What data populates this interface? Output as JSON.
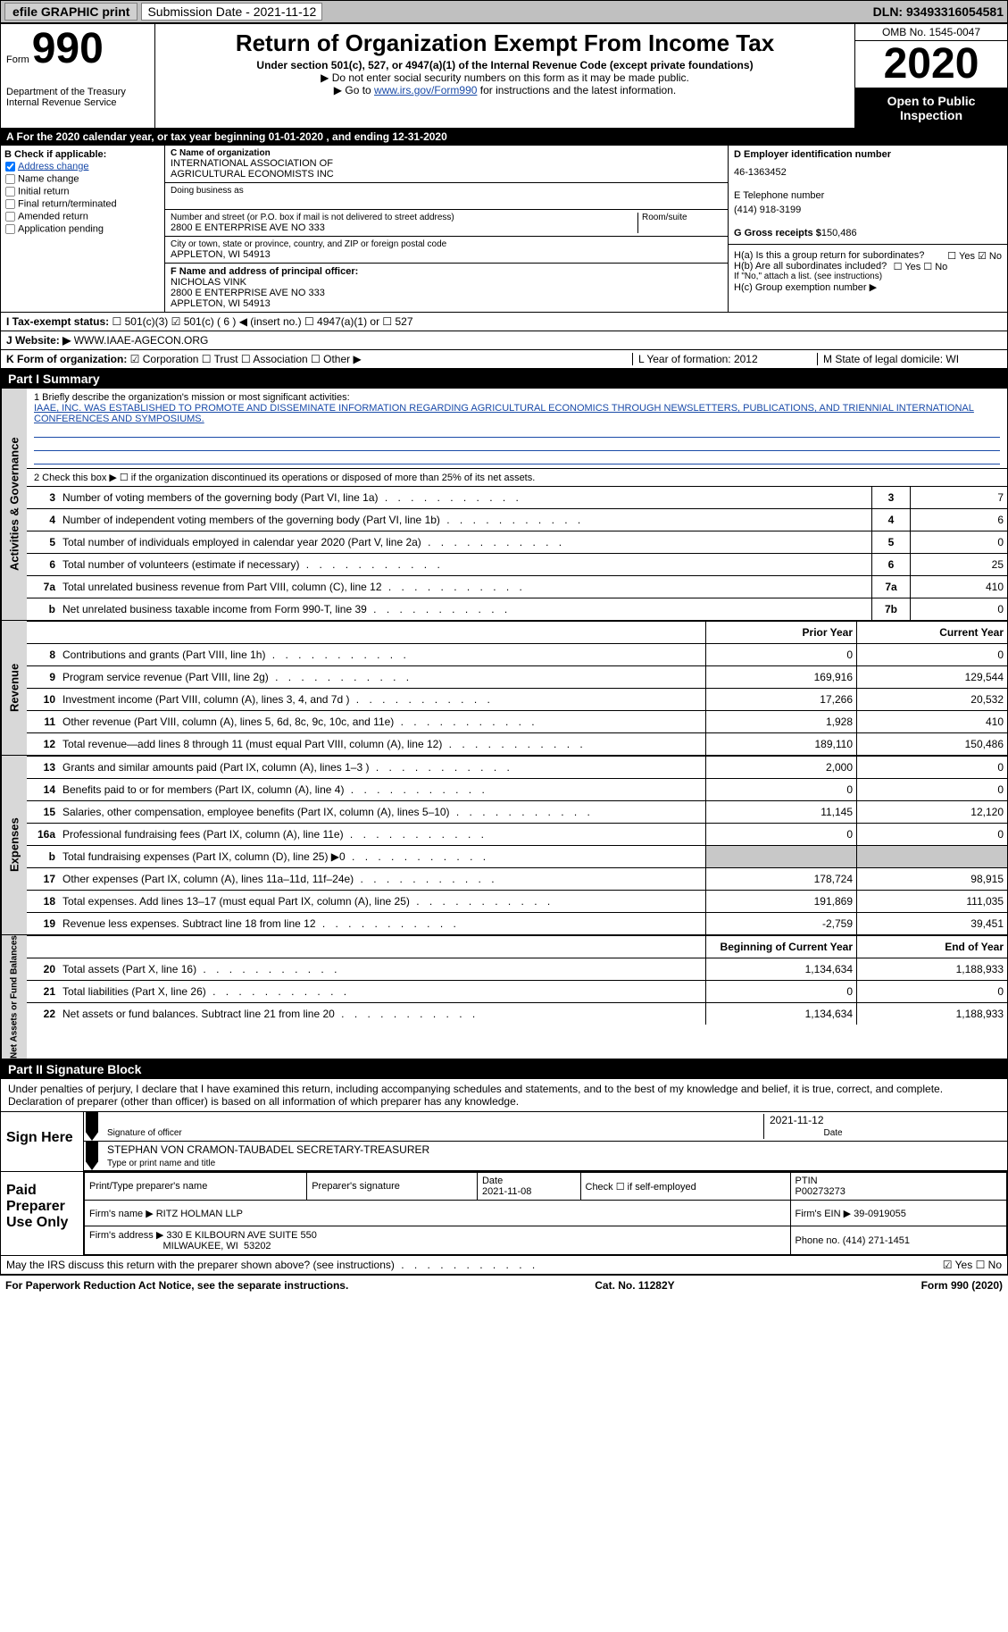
{
  "topbar": {
    "efile": "efile",
    "graphic": "GRAPHIC",
    "print": "print",
    "sub_label": "Submission Date - 2021-11-12",
    "dln_label": "DLN: 93493316054581"
  },
  "header": {
    "form": "Form",
    "num": "990",
    "dept1": "Department of the Treasury",
    "dept2": "Internal Revenue Service",
    "title": "Return of Organization Exempt From Income Tax",
    "sub": "Under section 501(c), 527, or 4947(a)(1) of the Internal Revenue Code (except private foundations)",
    "sub2a": "▶ Do not enter social security numbers on this form as it may be made public.",
    "sub2b_pre": "▶ Go to ",
    "sub2b_link": "www.irs.gov/Form990",
    "sub2b_post": " for instructions and the latest information.",
    "omb": "OMB No. 1545-0047",
    "year": "2020",
    "open": "Open to Public Inspection"
  },
  "period": "A For the 2020 calendar year, or tax year beginning 01-01-2020    , and ending 12-31-2020",
  "B": {
    "hdr": "B Check if applicable:",
    "items": [
      "Address change",
      "Name change",
      "Initial return",
      "Final return/terminated",
      "Amended return",
      "Application pending"
    ],
    "checked_idx": 0
  },
  "C": {
    "name_lbl": "C Name of organization",
    "name1": "INTERNATIONAL ASSOCIATION OF",
    "name2": "AGRICULTURAL ECONOMISTS INC",
    "dba_lbl": "Doing business as",
    "street_lbl": "Number and street (or P.O. box if mail is not delivered to street address)",
    "room_lbl": "Room/suite",
    "street": "2800 E ENTERPRISE AVE NO 333",
    "city_lbl": "City or town, state or province, country, and ZIP or foreign postal code",
    "city": "APPLETON, WI  54913",
    "F_lbl": "F Name and address of principal officer:",
    "F_name": "NICHOLAS VINK",
    "F_addr1": "2800 E ENTERPRISE AVE NO 333",
    "F_addr2": "APPLETON, WI  54913"
  },
  "D": {
    "ein_lbl": "D Employer identification number",
    "ein": "46-1363452",
    "phone_lbl": "E Telephone number",
    "phone": "(414) 918-3199",
    "gross_lbl": "G Gross receipts $",
    "gross": "150,486"
  },
  "H": {
    "a": "H(a)  Is this a group return for subordinates?",
    "b": "H(b)  Are all subordinates included?",
    "yn": "☐ Yes  ☑ No",
    "yn2": "☐ Yes  ☐ No",
    "note": "If \"No,\" attach a list. (see instructions)",
    "c": "H(c)  Group exemption number ▶"
  },
  "I": {
    "lbl": "I   Tax-exempt status:",
    "opts": "☐ 501(c)(3)   ☑ 501(c) ( 6 ) ◀ (insert no.)   ☐ 4947(a)(1) or   ☐ 527"
  },
  "J": {
    "lbl": "J   Website: ▶",
    "val": "WWW.IAAE-AGECON.ORG"
  },
  "K": {
    "lbl": "K Form of organization:",
    "opts": "☑ Corporation  ☐ Trust  ☐ Association  ☐ Other ▶",
    "L": "L Year of formation: 2012",
    "M": "M State of legal domicile: WI"
  },
  "partI": "Part I     Summary",
  "mission": {
    "lbl": "1  Briefly describe the organization's mission or most significant activities:",
    "text": "IAAE, INC. WAS ESTABLISHED TO PROMOTE AND DISSEMINATE INFORMATION REGARDING AGRICULTURAL ECONOMICS THROUGH NEWSLETTERS, PUBLICATIONS, AND TRIENNIAL INTERNATIONAL CONFERENCES AND SYMPOSIUMS."
  },
  "line2": "2   Check this box ▶ ☐  if the organization discontinued its operations or disposed of more than 25% of its net assets.",
  "gov_rows": [
    {
      "n": "3",
      "d": "Number of voting members of the governing body (Part VI, line 1a)",
      "box": "3",
      "v": "7"
    },
    {
      "n": "4",
      "d": "Number of independent voting members of the governing body (Part VI, line 1b)",
      "box": "4",
      "v": "6"
    },
    {
      "n": "5",
      "d": "Total number of individuals employed in calendar year 2020 (Part V, line 2a)",
      "box": "5",
      "v": "0"
    },
    {
      "n": "6",
      "d": "Total number of volunteers (estimate if necessary)",
      "box": "6",
      "v": "25"
    },
    {
      "n": "7a",
      "d": "Total unrelated business revenue from Part VIII, column (C), line 12",
      "box": "7a",
      "v": "410"
    },
    {
      "n": "b",
      "d": "Net unrelated business taxable income from Form 990-T, line 39",
      "box": "7b",
      "v": "0"
    }
  ],
  "two_col_hdr": {
    "prior": "Prior Year",
    "curr": "Current Year"
  },
  "rev_rows": [
    {
      "n": "8",
      "d": "Contributions and grants (Part VIII, line 1h)",
      "p": "0",
      "c": "0"
    },
    {
      "n": "9",
      "d": "Program service revenue (Part VIII, line 2g)",
      "p": "169,916",
      "c": "129,544"
    },
    {
      "n": "10",
      "d": "Investment income (Part VIII, column (A), lines 3, 4, and 7d )",
      "p": "17,266",
      "c": "20,532"
    },
    {
      "n": "11",
      "d": "Other revenue (Part VIII, column (A), lines 5, 6d, 8c, 9c, 10c, and 11e)",
      "p": "1,928",
      "c": "410"
    },
    {
      "n": "12",
      "d": "Total revenue—add lines 8 through 11 (must equal Part VIII, column (A), line 12)",
      "p": "189,110",
      "c": "150,486"
    }
  ],
  "exp_rows": [
    {
      "n": "13",
      "d": "Grants and similar amounts paid (Part IX, column (A), lines 1–3 )",
      "p": "2,000",
      "c": "0"
    },
    {
      "n": "14",
      "d": "Benefits paid to or for members (Part IX, column (A), line 4)",
      "p": "0",
      "c": "0"
    },
    {
      "n": "15",
      "d": "Salaries, other compensation, employee benefits (Part IX, column (A), lines 5–10)",
      "p": "11,145",
      "c": "12,120"
    },
    {
      "n": "16a",
      "d": "Professional fundraising fees (Part IX, column (A), line 11e)",
      "p": "0",
      "c": "0"
    },
    {
      "n": "b",
      "d": "Total fundraising expenses (Part IX, column (D), line 25) ▶0",
      "p": "grey",
      "c": "grey"
    },
    {
      "n": "17",
      "d": "Other expenses (Part IX, column (A), lines 11a–11d, 11f–24e)",
      "p": "178,724",
      "c": "98,915"
    },
    {
      "n": "18",
      "d": "Total expenses. Add lines 13–17 (must equal Part IX, column (A), line 25)",
      "p": "191,869",
      "c": "111,035"
    },
    {
      "n": "19",
      "d": "Revenue less expenses. Subtract line 18 from line 12",
      "p": "-2,759",
      "c": "39,451"
    }
  ],
  "net_hdr": {
    "beg": "Beginning of Current Year",
    "end": "End of Year"
  },
  "net_rows": [
    {
      "n": "20",
      "d": "Total assets (Part X, line 16)",
      "p": "1,134,634",
      "c": "1,188,933"
    },
    {
      "n": "21",
      "d": "Total liabilities (Part X, line 26)",
      "p": "0",
      "c": "0"
    },
    {
      "n": "22",
      "d": "Net assets or fund balances. Subtract line 21 from line 20",
      "p": "1,134,634",
      "c": "1,188,933"
    }
  ],
  "side_labels": {
    "gov": "Activities & Governance",
    "rev": "Revenue",
    "exp": "Expenses",
    "net": "Net Assets or Fund Balances"
  },
  "partII": "Part II     Signature Block",
  "declare": "Under penalties of perjury, I declare that I have examined this return, including accompanying schedules and statements, and to the best of my knowledge and belief, it is true, correct, and complete. Declaration of preparer (other than officer) is based on all information of which preparer has any knowledge.",
  "sign": {
    "here": "Sign Here",
    "sig_lbl": "Signature of officer",
    "date": "2021-11-12",
    "date_lbl": "Date",
    "name": "STEPHAN VON CRAMON-TAUBADEL  SECRETARY-TREASURER",
    "name_lbl": "Type or print name and title"
  },
  "prep": {
    "hdr": "Paid Preparer Use Only",
    "r1": [
      "Print/Type preparer's name",
      "Preparer's signature",
      "Date\n2021-11-08",
      "Check ☐ if self-employed",
      "PTIN\nP00273273"
    ],
    "r2": [
      "Firm's name    ▶ RITZ HOLMAN LLP",
      "Firm's EIN ▶ 39-0919055"
    ],
    "r3": [
      "Firm's address ▶ 330 E KILBOURN AVE SUITE 550\n                           MILWAUKEE, WI  53202",
      "Phone no. (414) 271-1451"
    ]
  },
  "discuss": "May the IRS discuss this return with the preparer shown above? (see instructions)",
  "discuss_yn": "☑ Yes  ☐ No",
  "footer": {
    "l": "For Paperwork Reduction Act Notice, see the separate instructions.",
    "c": "Cat. No. 11282Y",
    "r": "Form 990 (2020)"
  },
  "colors": {
    "link": "#1a4ba8",
    "grey": "#c8c8c8",
    "sideGrey": "#d8d8d8"
  }
}
